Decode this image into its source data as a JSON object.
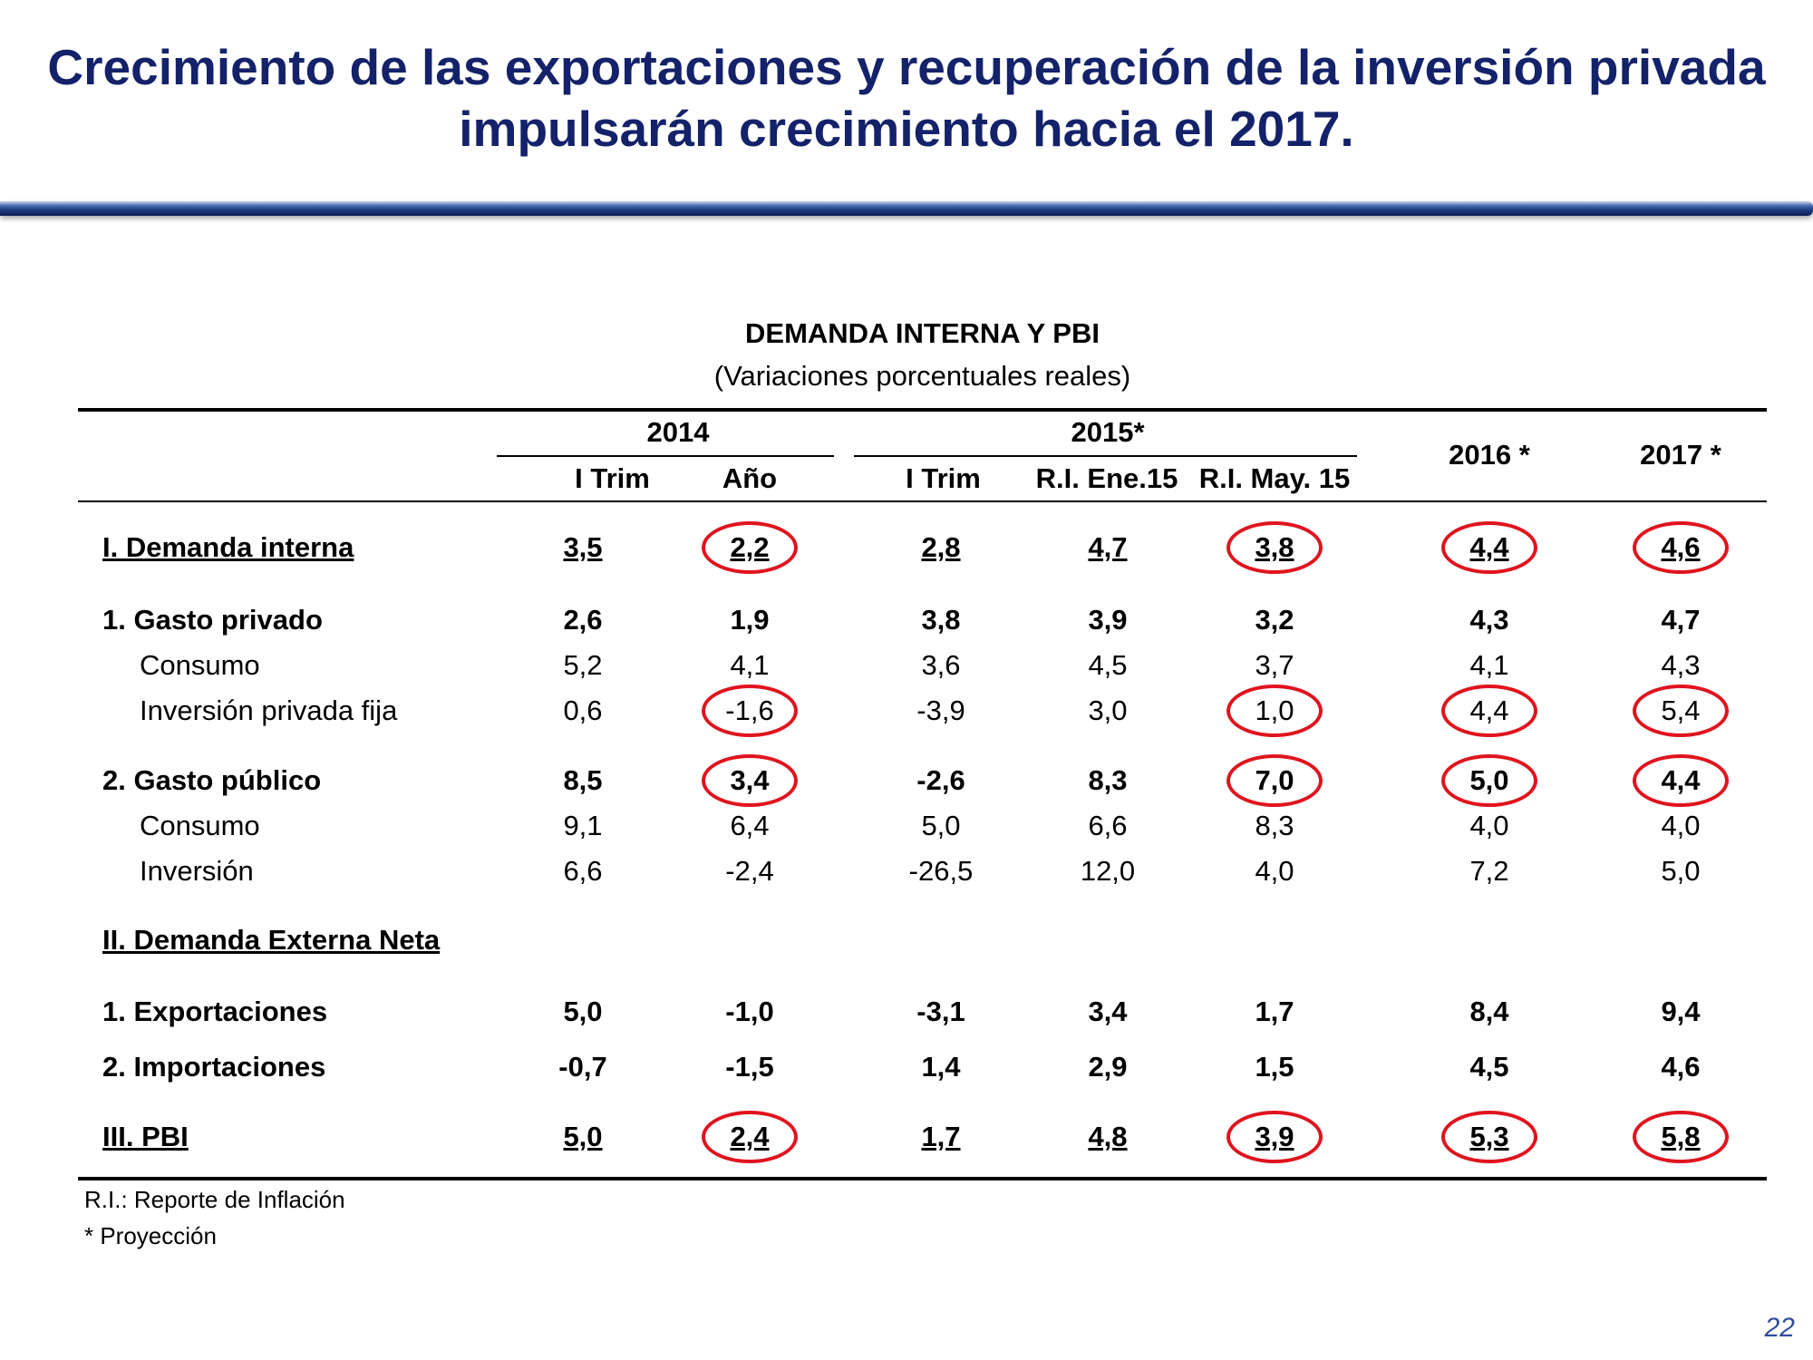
{
  "title": {
    "line1": "Crecimiento de las exportaciones y recuperación de la inversión privada",
    "line2": "impulsarán crecimiento hacia el 2017."
  },
  "table": {
    "title": "DEMANDA INTERNA Y PBI",
    "subtitle": "(Variaciones porcentuales reales)",
    "group_headers": {
      "y2014": "2014",
      "y2015": "2015*",
      "y2016": "2016 *",
      "y2017": "2017 *"
    },
    "sub_headers": [
      "I Trim",
      "Año",
      "I Trim",
      "R.I. Ene.15",
      "R.I. May. 15"
    ],
    "rows": [
      {
        "label": "I. Demanda interna",
        "values": [
          "3,5",
          "2,2",
          "2,8",
          "4,7",
          "3,8",
          "4,4",
          "4,6"
        ],
        "style": "bold-underline",
        "indent": false,
        "circled": [
          1,
          4,
          5,
          6
        ]
      },
      {
        "label": "1. Gasto privado",
        "values": [
          "2,6",
          "1,9",
          "3,8",
          "3,9",
          "3,2",
          "4,3",
          "4,7"
        ],
        "style": "bold",
        "indent": false,
        "circled": []
      },
      {
        "label": "Consumo",
        "values": [
          "5,2",
          "4,1",
          "3,6",
          "4,5",
          "3,7",
          "4,1",
          "4,3"
        ],
        "style": "normal",
        "indent": true,
        "circled": []
      },
      {
        "label": "Inversión privada fija",
        "values": [
          "0,6",
          "-1,6",
          "-3,9",
          "3,0",
          "1,0",
          "4,4",
          "5,4"
        ],
        "style": "normal",
        "indent": true,
        "circled": [
          1,
          4,
          5,
          6
        ]
      },
      {
        "label": "2. Gasto público",
        "values": [
          "8,5",
          "3,4",
          "-2,6",
          "8,3",
          "7,0",
          "5,0",
          "4,4"
        ],
        "style": "bold",
        "indent": false,
        "circled": [
          1,
          4,
          5,
          6
        ]
      },
      {
        "label": "Consumo",
        "values": [
          "9,1",
          "6,4",
          "5,0",
          "6,6",
          "8,3",
          "4,0",
          "4,0"
        ],
        "style": "normal",
        "indent": true,
        "circled": []
      },
      {
        "label": "Inversión",
        "values": [
          "6,6",
          "-2,4",
          "-26,5",
          "12,0",
          "4,0",
          "7,2",
          "5,0"
        ],
        "style": "normal",
        "indent": true,
        "circled": []
      },
      {
        "label": "II. Demanda Externa Neta",
        "values": [
          "",
          "",
          "",
          "",
          "",
          "",
          ""
        ],
        "style": "bold-underline",
        "indent": false,
        "circled": []
      },
      {
        "label": "1. Exportaciones",
        "values": [
          "5,0",
          "-1,0",
          "-3,1",
          "3,4",
          "1,7",
          "8,4",
          "9,4"
        ],
        "style": "bold",
        "indent": false,
        "circled": []
      },
      {
        "label": "2. Importaciones",
        "values": [
          "-0,7",
          "-1,5",
          "1,4",
          "2,9",
          "1,5",
          "4,5",
          "4,6"
        ],
        "style": "bold",
        "indent": false,
        "circled": []
      },
      {
        "label": "III. PBI",
        "values": [
          "5,0",
          "2,4",
          "1,7",
          "4,8",
          "3,9",
          "5,3",
          "5,8"
        ],
        "style": "bold-underline",
        "indent": false,
        "circled": [
          1,
          4,
          5,
          6
        ]
      }
    ],
    "notes": [
      "R.I.: Reporte de Inflación",
      "* Proyección"
    ]
  },
  "page_number": "22",
  "colors": {
    "title": "#14226a",
    "circle": "#e0141e",
    "page_number": "#2f4d9c"
  }
}
